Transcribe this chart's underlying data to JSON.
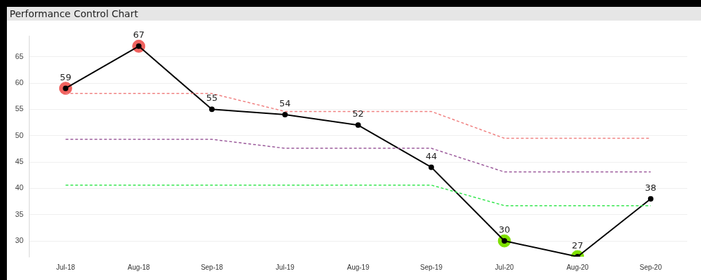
{
  "chart_data": {
    "type": "line",
    "title": "Performance Control Chart",
    "categories": [
      "Jul-18",
      "Aug-18",
      "Sep-18",
      "Jul-19",
      "Aug-19",
      "Sep-19",
      "Jul-20",
      "Aug-20",
      "Sep-20"
    ],
    "series": [
      {
        "color": "#f08080",
        "line_style": "dashed",
        "marker": "none",
        "values": [
          58,
          58,
          58,
          54.6,
          54.6,
          54.6,
          49.5,
          49.5,
          49.5
        ]
      },
      {
        "color": "#9b5a9b",
        "line_style": "dashed",
        "marker": "none",
        "values": [
          49.3,
          49.3,
          49.3,
          47.6,
          47.6,
          47.6,
          43.1,
          43.1,
          43.1
        ]
      },
      {
        "color": "#33e64d",
        "line_style": "dashed",
        "marker": "none",
        "values": [
          40.6,
          40.6,
          40.6,
          40.6,
          40.6,
          40.6,
          36.7,
          36.7,
          36.7
        ]
      },
      {
        "type": "scatter",
        "color": "#f0625f",
        "marker": "circle",
        "x": [
          "Jul-18",
          "Aug-18"
        ],
        "values": [
          59,
          67
        ]
      },
      {
        "type": "scatter",
        "color": "#7ee000",
        "marker": "circle",
        "x": [
          "Jul-20",
          "Aug-20"
        ],
        "values": [
          30,
          27
        ]
      },
      {
        "color": "#000000",
        "line_style": "solid",
        "marker": "circle",
        "values": [
          59,
          67,
          55,
          54,
          52,
          44,
          30,
          27,
          38
        ],
        "value_labels": [
          "59",
          "67",
          "55",
          "54",
          "52",
          "44",
          "30",
          "27",
          "38"
        ]
      }
    ],
    "ylim": [
      27,
      69
    ],
    "yticks": [
      30,
      35,
      40,
      45,
      50,
      55,
      60,
      65
    ],
    "grid": "y",
    "legend": false
  }
}
